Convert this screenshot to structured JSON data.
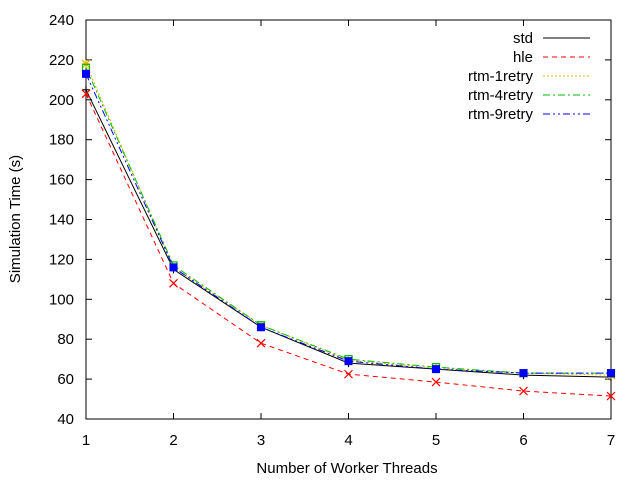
{
  "chart_data": {
    "type": "line",
    "xlabel": "Number of Worker Threads",
    "ylabel": "Simulation Time (s)",
    "xlim": [
      1,
      7
    ],
    "ylim": [
      40,
      240
    ],
    "xticks": [
      1,
      2,
      3,
      4,
      5,
      6,
      7
    ],
    "yticks": [
      40,
      60,
      80,
      100,
      120,
      140,
      160,
      180,
      200,
      220,
      240
    ],
    "grid": false,
    "legend_position": "top-right",
    "x": [
      1,
      2,
      3,
      4,
      5,
      6,
      7
    ],
    "series": [
      {
        "name": "std",
        "color": "#000000",
        "dash": "solid",
        "marker": "plus",
        "values": [
          205,
          115,
          86,
          68,
          65,
          62,
          61
        ]
      },
      {
        "name": "hle",
        "color": "#ff0000",
        "dash": "dashed",
        "marker": "x",
        "values": [
          203,
          108,
          78,
          62.5,
          58.5,
          54,
          51.5
        ]
      },
      {
        "name": "rtm-1retry",
        "color": "#e0b000",
        "dash": "dotted",
        "marker": "asterisk",
        "values": [
          218,
          116,
          87,
          69.5,
          65.5,
          63,
          62
        ]
      },
      {
        "name": "rtm-4retry",
        "color": "#00c000",
        "dash": "dashdot",
        "marker": "open-square",
        "values": [
          216,
          117,
          87,
          70,
          66,
          63,
          63
        ]
      },
      {
        "name": "rtm-9retry",
        "color": "#0000ff",
        "dash": "dashdotdot",
        "marker": "filled-square",
        "values": [
          213,
          116,
          86,
          69,
          65,
          63,
          63
        ]
      }
    ]
  }
}
